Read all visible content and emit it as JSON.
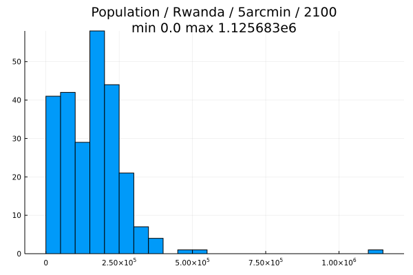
{
  "chart_data": {
    "type": "bar",
    "title": "Population / Rwanda / 5arcmin / 2100",
    "subtitle": "min 0.0  max 1.125683e6",
    "xlabel": "",
    "ylabel": "",
    "bin_width": 50000,
    "bins": [
      {
        "start": 0,
        "end": 50000,
        "count": 41
      },
      {
        "start": 50000,
        "end": 100000,
        "count": 42
      },
      {
        "start": 100000,
        "end": 150000,
        "count": 29
      },
      {
        "start": 150000,
        "end": 200000,
        "count": 58
      },
      {
        "start": 200000,
        "end": 250000,
        "count": 44
      },
      {
        "start": 250000,
        "end": 300000,
        "count": 21
      },
      {
        "start": 300000,
        "end": 350000,
        "count": 7
      },
      {
        "start": 350000,
        "end": 400000,
        "count": 4
      },
      {
        "start": 450000,
        "end": 500000,
        "count": 1
      },
      {
        "start": 500000,
        "end": 550000,
        "count": 1
      },
      {
        "start": 1100000,
        "end": 1150000,
        "count": 1
      }
    ],
    "xlim": [
      -72000,
      1222000
    ],
    "ylim": [
      0,
      58
    ],
    "x_ticks": [
      {
        "value": 0,
        "mantissa": "0",
        "exponent": ""
      },
      {
        "value": 250000,
        "mantissa": "2.50×10",
        "exponent": "5"
      },
      {
        "value": 500000,
        "mantissa": "5.00×10",
        "exponent": "5"
      },
      {
        "value": 750000,
        "mantissa": "7.50×10",
        "exponent": "5"
      },
      {
        "value": 1000000,
        "mantissa": "1.00×10",
        "exponent": "6"
      }
    ],
    "y_ticks": [
      0,
      10,
      20,
      30,
      40,
      50
    ],
    "grid": true,
    "legend": "none",
    "bar_color": "#009AF9",
    "bar_edge_color": "#000000"
  }
}
